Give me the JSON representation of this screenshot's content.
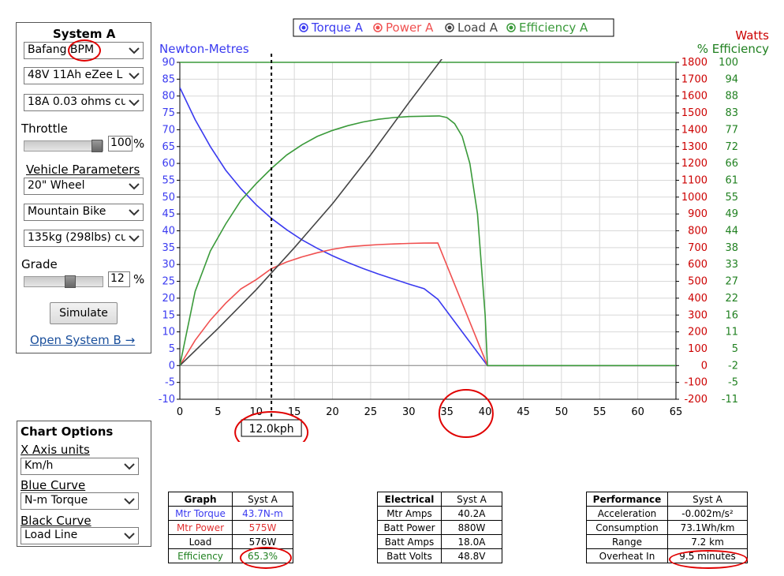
{
  "system_a": {
    "title": "System A",
    "motor": "Bafang BPM",
    "battery": "48V 11Ah eZee L",
    "controller": "18A 0.03 ohms cu",
    "throttle_label": "Throttle",
    "throttle_value": "100",
    "throttle_level": 1.0,
    "percent": "%",
    "vehicle_params_label": "Vehicle Parameters",
    "wheel": "20\"  Wheel",
    "bike_type": "Mountain Bike",
    "mass": "135kg (298lbs) cu",
    "grade_label": "Grade",
    "grade_value": "12",
    "grade_level": 0.6,
    "simulate_label": "Simulate",
    "open_system_b": "Open System B →"
  },
  "chart_options": {
    "title": "Chart Options",
    "x_axis_label": "X Axis units",
    "x_axis_value": "Km/h",
    "blue_label": "Blue Curve",
    "blue_value": "N-m Torque",
    "black_label": "Black Curve",
    "black_value": "Load Line"
  },
  "legend": {
    "torque": "Torque A",
    "power": "Power A",
    "load": "Load A",
    "efficiency": "Efficiency A"
  },
  "colors": {
    "torque": "#3a3af0",
    "power": "#f05050",
    "load": "#444444",
    "efficiency": "#3a9a3a",
    "watts_axis": "#cc0000",
    "eff_axis": "#208020",
    "annotation": "#e00000"
  },
  "chart_data": {
    "type": "line",
    "left_axis_title": "Newton-Metres",
    "right_axis_title_1": "Watts",
    "right_axis_title_2": "% Efficiency",
    "xlim": [
      0,
      65
    ],
    "ylim": [
      -10,
      90
    ],
    "watts_lim": [
      -200,
      1800
    ],
    "x_ticks": [
      "0",
      "5",
      "10",
      "15",
      "20",
      "25",
      "30",
      "35",
      "40",
      "45",
      "50",
      "55",
      "60",
      "65"
    ],
    "y_ticks": [
      "-10",
      "-5",
      "0",
      "5",
      "10",
      "15",
      "20",
      "25",
      "30",
      "35",
      "40",
      "45",
      "50",
      "55",
      "60",
      "65",
      "70",
      "75",
      "80",
      "85",
      "90"
    ],
    "watts_ticks": [
      "-200",
      "-100",
      "0",
      "100",
      "200",
      "300",
      "400",
      "500",
      "600",
      "700",
      "800",
      "900",
      "1000",
      "1100",
      "1200",
      "1300",
      "1400",
      "1500",
      "1600",
      "1700",
      "1800"
    ],
    "eff_ticks": [
      "-11",
      "-5",
      "-2",
      "5",
      "11",
      "16",
      "22",
      "27",
      "33",
      "38",
      "44",
      "49",
      "55",
      "61",
      "66",
      "72",
      "77",
      "83",
      "88",
      "94",
      "100"
    ],
    "cursor_x": 12.0,
    "cursor_label": "12.0kph",
    "series": [
      {
        "name": "Torque A",
        "axis": "nm",
        "x": [
          0,
          2,
          4,
          6,
          8,
          10,
          12,
          14,
          16,
          18,
          20,
          22,
          24,
          26,
          28,
          30,
          32,
          33.8,
          37,
          40.3,
          65
        ],
        "y": [
          82.5,
          73,
          65,
          58,
          52.5,
          47.7,
          43.7,
          40.3,
          37.3,
          34.8,
          32.6,
          30.6,
          28.8,
          27.2,
          25.7,
          24.2,
          22.8,
          19.7,
          10,
          0,
          0
        ]
      },
      {
        "name": "Power A",
        "axis": "watts",
        "x": [
          0,
          2,
          4,
          6,
          8,
          10,
          12,
          14,
          16,
          18,
          20,
          22,
          24,
          26,
          28,
          30,
          32,
          33.8,
          40.3,
          65
        ],
        "y": [
          0,
          150,
          270,
          370,
          455,
          510,
          575,
          615,
          645,
          670,
          690,
          705,
          712,
          718,
          722,
          725,
          727,
          728,
          0,
          0
        ]
      },
      {
        "name": "Load A",
        "axis": "nm",
        "x": [
          0,
          5,
          10,
          15,
          20,
          25,
          30,
          33,
          35,
          37.4
        ],
        "y": [
          0,
          11,
          22.5,
          35,
          48,
          62.5,
          78,
          87,
          93,
          99
        ]
      },
      {
        "name": "Efficiency A",
        "axis": "nm",
        "x": [
          0,
          2,
          4,
          6,
          8,
          10,
          12,
          14,
          16,
          18,
          20,
          22,
          24,
          26,
          28,
          30,
          32,
          34,
          35,
          36,
          37,
          38,
          39,
          40,
          40.3,
          65
        ],
        "y": [
          0,
          22,
          34,
          42,
          49,
          54,
          58.5,
          62.5,
          65.5,
          68,
          69.8,
          71.2,
          72.3,
          73.1,
          73.6,
          73.9,
          74,
          74.1,
          73.6,
          71.8,
          68,
          60,
          45,
          15,
          0,
          0
        ]
      }
    ],
    "efficiency_ceiling_y": 90
  },
  "graph_table": {
    "headers": [
      "Graph",
      "Syst A"
    ],
    "rows": [
      [
        "Mtr Torque",
        "43.7N-m"
      ],
      [
        "Mtr Power",
        "575W"
      ],
      [
        "Load",
        "576W"
      ],
      [
        "Efficiency",
        "65.3%"
      ]
    ]
  },
  "electrical_table": {
    "headers": [
      "Electrical",
      "Syst A"
    ],
    "rows": [
      [
        "Mtr Amps",
        "40.2A"
      ],
      [
        "Batt Power",
        "880W"
      ],
      [
        "Batt Amps",
        "18.0A"
      ],
      [
        "Batt Volts",
        "48.8V"
      ]
    ]
  },
  "performance_table": {
    "headers": [
      "Performance",
      "Syst A"
    ],
    "rows": [
      [
        "Acceleration",
        "-0.002m/s²"
      ],
      [
        "Consumption",
        "73.1Wh/km"
      ],
      [
        "Range",
        "7.2 km"
      ],
      [
        "Overheat In",
        "9.5 minutes"
      ]
    ]
  }
}
